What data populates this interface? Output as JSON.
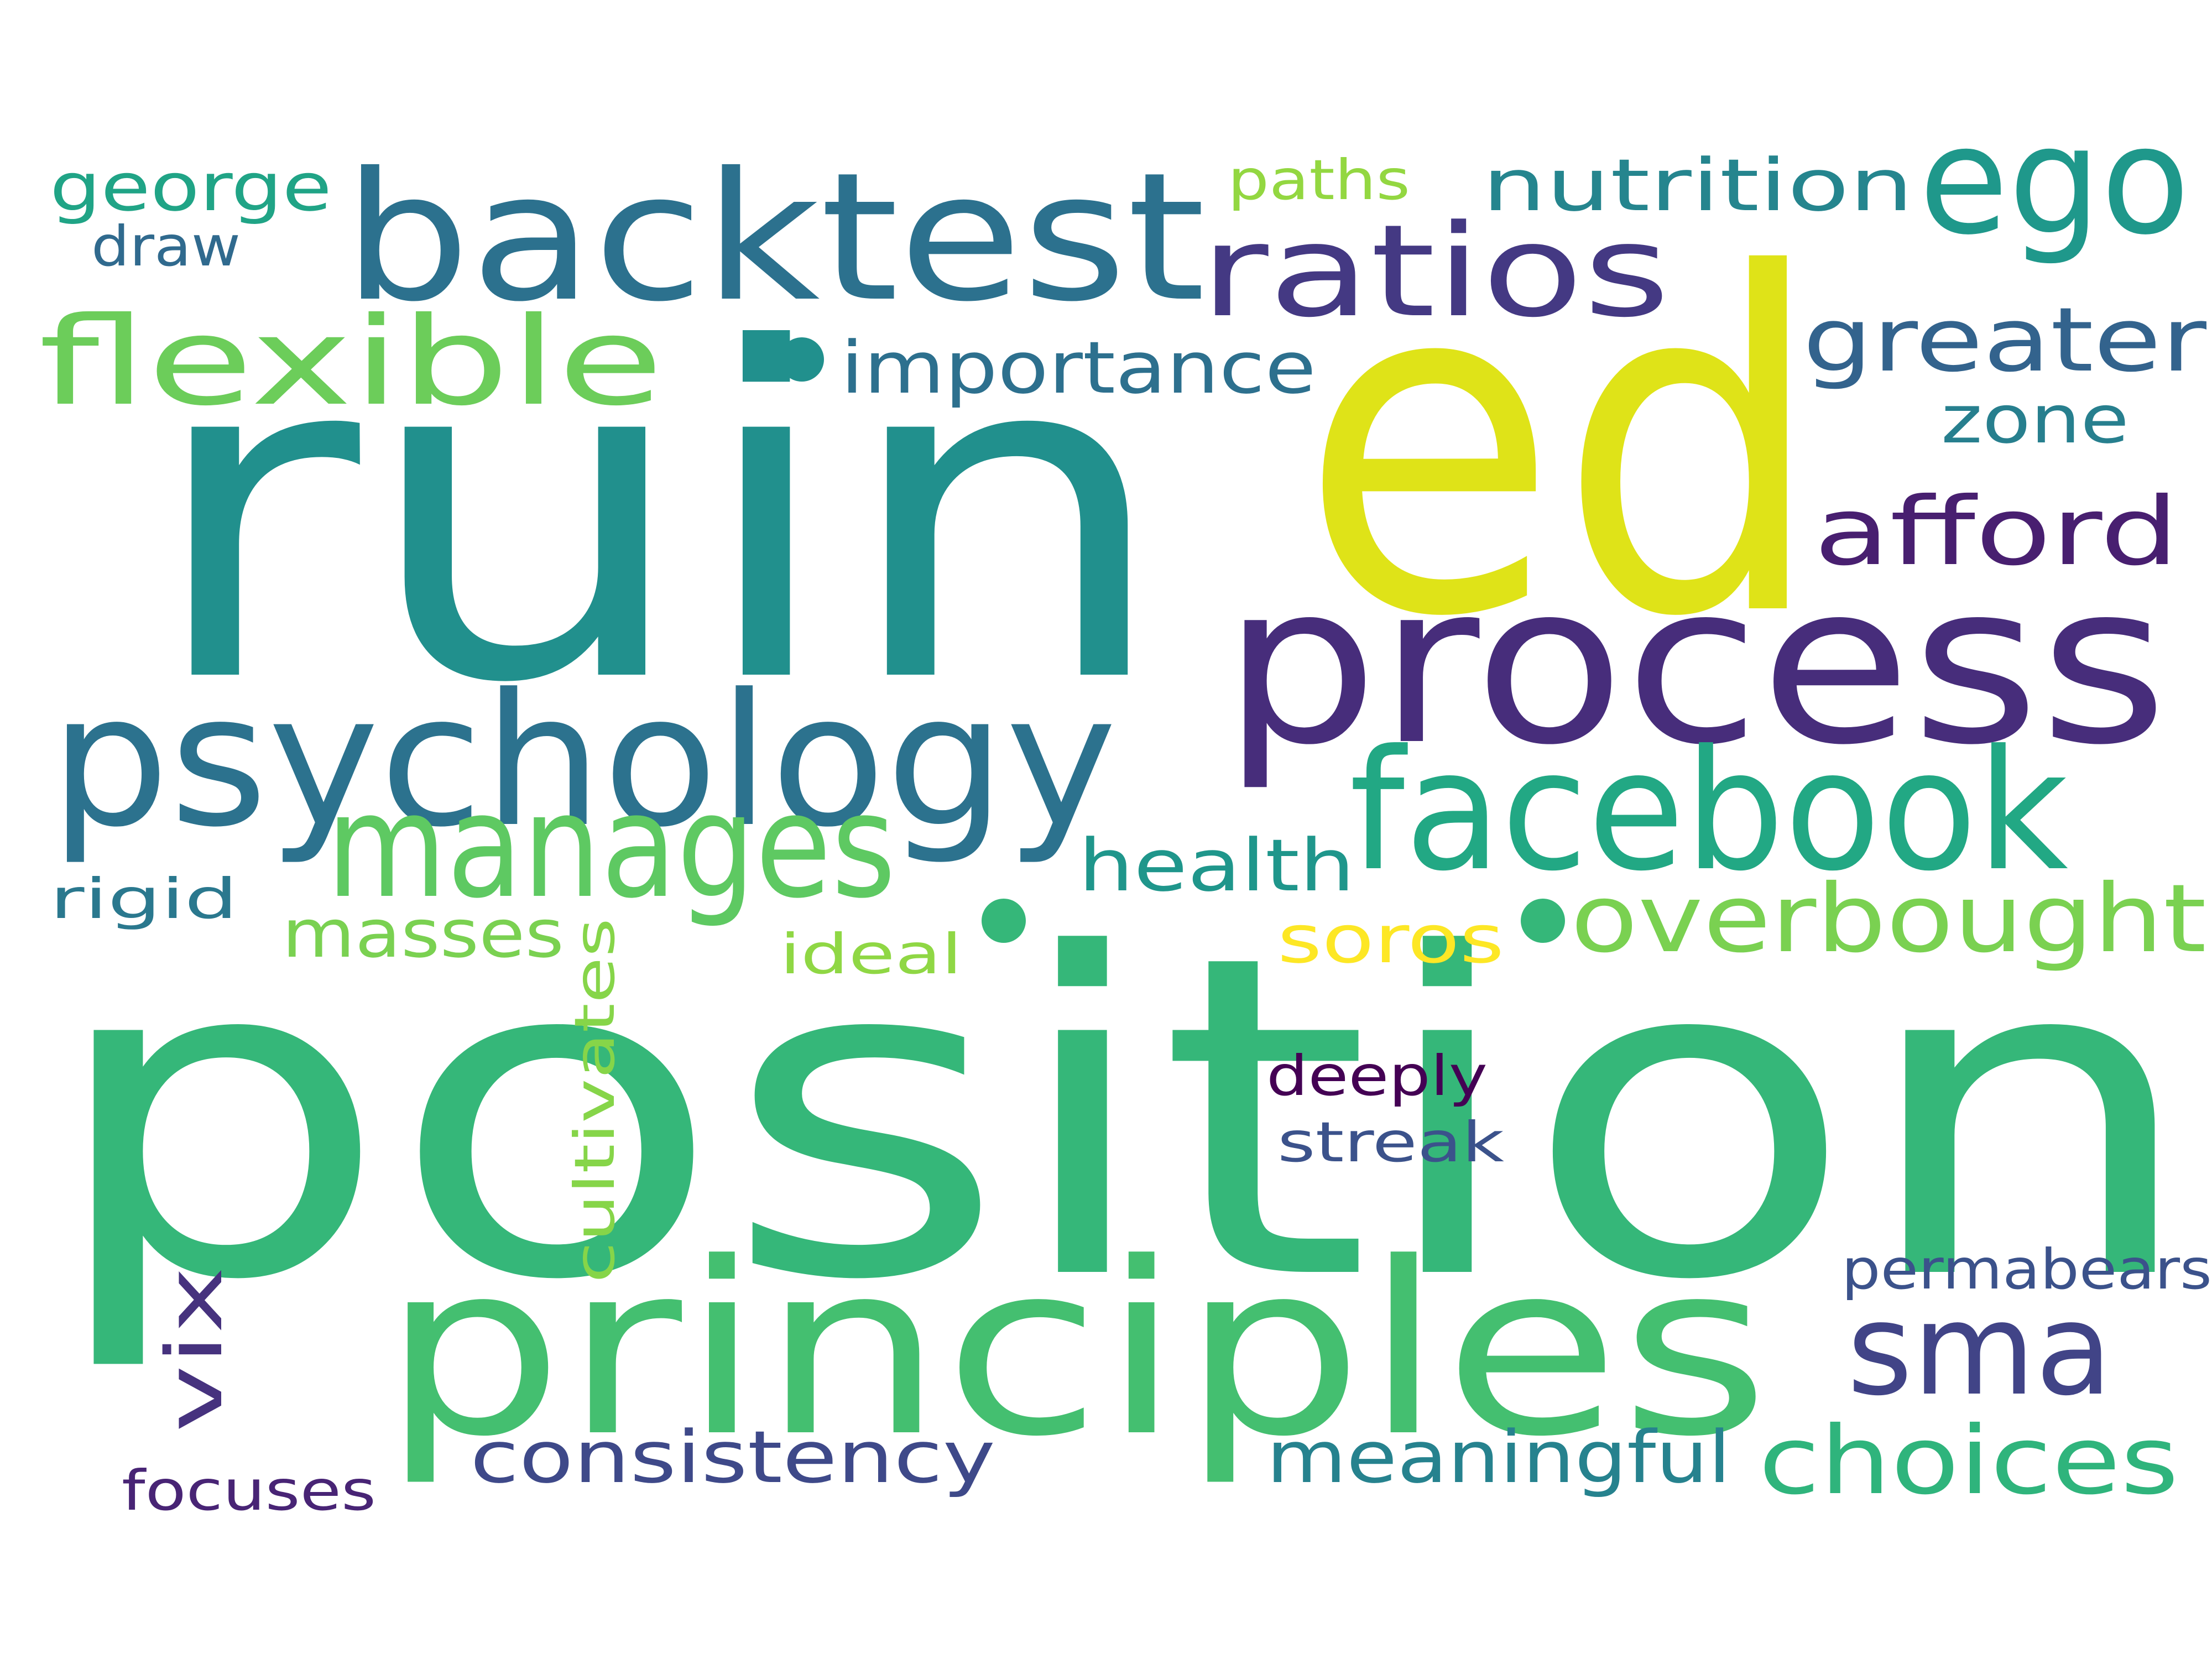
{
  "words": [
    {
      "text": "position",
      "color": "#35b779"
    },
    {
      "text": "ed",
      "color": "#dfe318"
    },
    {
      "text": "ruin",
      "color": "#21908d"
    },
    {
      "text": "process",
      "color": "#472d7b"
    },
    {
      "text": "principles",
      "color": "#44bf70"
    },
    {
      "text": "backtest",
      "color": "#2c718e"
    },
    {
      "text": "psychology",
      "color": "#2c728e"
    },
    {
      "text": "facebook",
      "color": "#22a884"
    },
    {
      "text": "manages",
      "color": "#5ec962"
    },
    {
      "text": "ego",
      "color": "#1f988b"
    },
    {
      "text": "ratios",
      "color": "#443983"
    },
    {
      "text": "flexible",
      "color": "#6ccd5a"
    },
    {
      "text": "sma",
      "color": "#414487"
    },
    {
      "text": "overbought",
      "color": "#7ad151"
    },
    {
      "text": "greater",
      "color": "#33638d"
    },
    {
      "text": "afford",
      "color": "#481f70"
    },
    {
      "text": "choices",
      "color": "#2fb47c"
    },
    {
      "text": "nutrition",
      "color": "#25858e"
    },
    {
      "text": "importance",
      "color": "#2d708e"
    },
    {
      "text": "health",
      "color": "#1f968b"
    },
    {
      "text": "consistency",
      "color": "#3e4989"
    },
    {
      "text": "meaningful",
      "color": "#26828e"
    },
    {
      "text": "george",
      "color": "#20a486"
    },
    {
      "text": "soros",
      "color": "#fde725"
    },
    {
      "text": "vix",
      "color": "#46327e"
    },
    {
      "text": "masses",
      "color": "#7ad151"
    },
    {
      "text": "zone",
      "color": "#277f8e"
    },
    {
      "text": "permabears",
      "color": "#3b528b"
    },
    {
      "text": "deeply",
      "color": "#440154"
    },
    {
      "text": "streak",
      "color": "#3b528b"
    },
    {
      "text": "cultivates",
      "color": "#86d549"
    },
    {
      "text": "rigid",
      "color": "#2a788e"
    },
    {
      "text": "draw",
      "color": "#306a8e"
    },
    {
      "text": "ideal",
      "color": "#8fd744"
    },
    {
      "text": "paths",
      "color": "#93d741"
    },
    {
      "text": "focuses",
      "color": "#482475"
    }
  ],
  "dots": [
    {
      "color": "#21908d"
    },
    {
      "color": "#35b779"
    },
    {
      "color": "#35b779"
    }
  ]
}
